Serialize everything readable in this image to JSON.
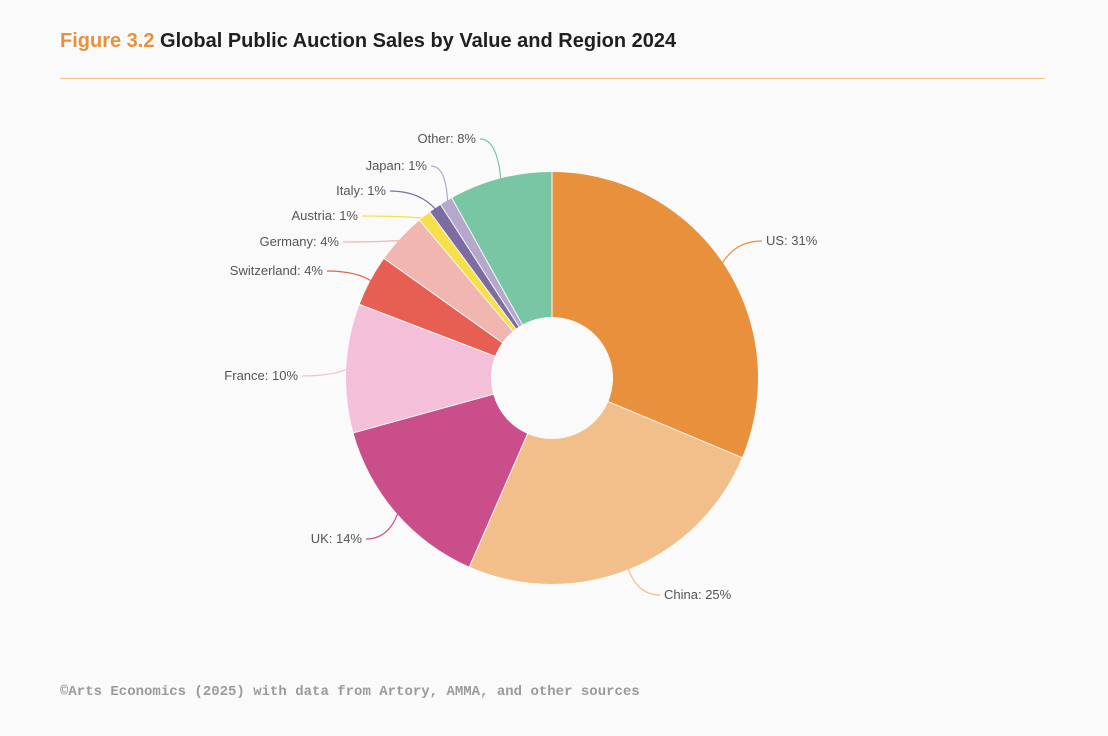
{
  "figure": {
    "number": "Figure 3.2",
    "title": "Global Public Auction Sales by Value and Region 2024"
  },
  "source": "©Arts Economics (2025) with data from Artory, AMMA, and other sources",
  "chart_data": {
    "type": "pie",
    "variant": "donut",
    "title": "Global Public Auction Sales by Value and Region 2024",
    "unit": "%",
    "slices": [
      {
        "name": "US",
        "value": 31,
        "label": "US: 31%",
        "color": "#e9903d"
      },
      {
        "name": "China",
        "value": 25,
        "label": "China: 25%",
        "color": "#f2bf8a"
      },
      {
        "name": "UK",
        "value": 14,
        "label": "UK: 14%",
        "color": "#c94e8a"
      },
      {
        "name": "France",
        "value": 10,
        "label": "France: 10%",
        "color": "#f4c0d9"
      },
      {
        "name": "Switzerland",
        "value": 4,
        "label": "Switzerland: 4%",
        "color": "#e65f52"
      },
      {
        "name": "Germany",
        "value": 4,
        "label": "Germany: 4%",
        "color": "#f2b6b0"
      },
      {
        "name": "Austria",
        "value": 1,
        "label": "Austria: 1%",
        "color": "#f5e049"
      },
      {
        "name": "Italy",
        "value": 1,
        "label": "Italy: 1%",
        "color": "#7d6ca3"
      },
      {
        "name": "Japan",
        "value": 1,
        "label": "Japan: 1%",
        "color": "#b4a8cc"
      },
      {
        "name": "Other",
        "value": 8,
        "label": "Other: 8%",
        "color": "#78c6a3"
      }
    ]
  }
}
